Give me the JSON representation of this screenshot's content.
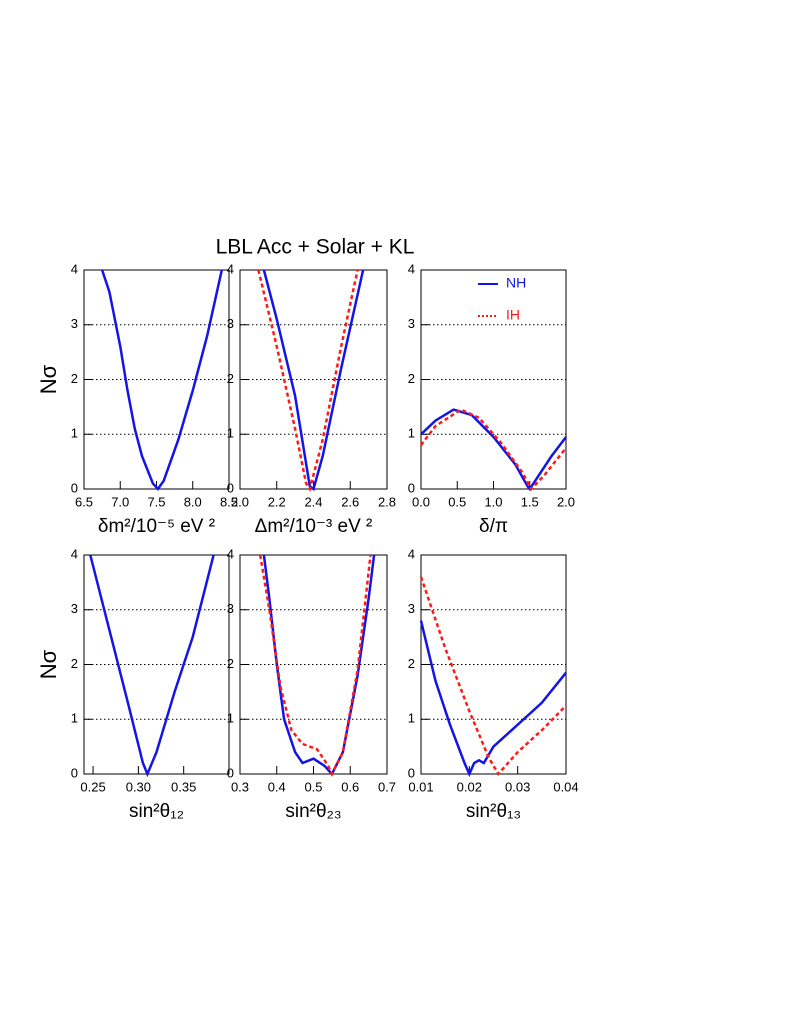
{
  "title": "LBL Acc + Solar + KL",
  "chart_data": [
    {
      "type": "line",
      "xlabel": "δm²/10⁻⁵ eV ²",
      "ylabel": "Nσ",
      "xlim": [
        6.5,
        8.5
      ],
      "xticks": [
        6.5,
        {
          "value": 7,
          "label": "7.0"
        },
        7.5,
        {
          "value": 8,
          "label": "8.0"
        },
        8.5
      ],
      "ylim": [
        0,
        4
      ],
      "yticks": [
        0,
        1,
        2,
        3,
        4
      ],
      "grid": true,
      "series": [
        {
          "color": "#1414e6",
          "linestyle": "solid",
          "x": [
            6.75,
            6.85,
            7.0,
            7.1,
            7.2,
            7.3,
            7.45,
            7.52,
            7.6,
            7.8,
            8.0,
            8.2,
            8.4
          ],
          "values": [
            4,
            3.6,
            2.6,
            1.8,
            1.1,
            0.6,
            0.1,
            0,
            0.15,
            0.9,
            1.8,
            2.8,
            4
          ]
        }
      ]
    },
    {
      "type": "line",
      "xlabel": "Δm²/10⁻³ eV ²",
      "xlim": [
        2.0,
        2.8
      ],
      "xticks": [
        {
          "value": 2,
          "label": "2.0"
        },
        2.2,
        2.4,
        2.6,
        2.8
      ],
      "ylim": [
        0,
        4
      ],
      "yticks": [
        0,
        1,
        2,
        3,
        4
      ],
      "grid": true,
      "series": [
        {
          "color": "#1414e6",
          "linestyle": "solid",
          "x": [
            2.13,
            2.2,
            2.3,
            2.38,
            2.4,
            2.45,
            2.55,
            2.67
          ],
          "values": [
            4,
            3.1,
            1.7,
            0.05,
            0,
            0.6,
            2.2,
            4
          ]
        },
        {
          "color": "#ff1a1a",
          "linestyle": "dotted",
          "x": [
            2.1,
            2.2,
            2.3,
            2.36,
            2.38,
            2.45,
            2.55,
            2.64
          ],
          "values": [
            4,
            2.6,
            1.1,
            0.1,
            0,
            0.9,
            2.6,
            4
          ]
        }
      ]
    },
    {
      "type": "line",
      "xlabel": "δ/π",
      "legend": "upper right",
      "xlim": [
        0,
        2
      ],
      "xticks": [
        {
          "value": 0,
          "label": "0.0"
        },
        0.5,
        {
          "value": 1,
          "label": "1.0"
        },
        1.5,
        {
          "value": 2,
          "label": "2.0"
        }
      ],
      "ylim": [
        0,
        4
      ],
      "yticks": [
        0,
        1,
        2,
        3,
        4
      ],
      "grid": true,
      "series": [
        {
          "name": "NH",
          "color": "#1414e6",
          "linestyle": "solid",
          "x": [
            0,
            0.2,
            0.45,
            0.7,
            1.0,
            1.3,
            1.47,
            1.5,
            1.6,
            1.8,
            2.0
          ],
          "values": [
            1,
            1.25,
            1.45,
            1.35,
            0.95,
            0.45,
            0.05,
            0,
            0.2,
            0.6,
            0.95
          ]
        },
        {
          "name": "IH",
          "color": "#ff1a1a",
          "linestyle": "dotted",
          "x": [
            0,
            0.2,
            0.55,
            0.8,
            1.1,
            1.4,
            1.52,
            1.7,
            2.0
          ],
          "values": [
            0.8,
            1.15,
            1.45,
            1.3,
            0.85,
            0.3,
            0,
            0.25,
            0.75
          ]
        }
      ]
    },
    {
      "type": "line",
      "xlabel": "sin²θ₁₂",
      "ylabel": "Nσ",
      "xlim": [
        0.24,
        0.4
      ],
      "xticks": [
        0.25,
        {
          "value": 0.3,
          "label": "0.30"
        },
        0.35
      ],
      "ylim": [
        0,
        4
      ],
      "yticks": [
        0,
        1,
        2,
        3,
        4
      ],
      "grid": true,
      "series": [
        {
          "color": "#1414e6",
          "linestyle": "solid",
          "x": [
            0.247,
            0.27,
            0.29,
            0.305,
            0.31,
            0.32,
            0.34,
            0.36,
            0.383
          ],
          "values": [
            4,
            2.5,
            1.2,
            0.2,
            0,
            0.4,
            1.5,
            2.5,
            4
          ]
        }
      ]
    },
    {
      "type": "line",
      "xlabel": "sin²θ₂₃",
      "xlim": [
        0.3,
        0.7
      ],
      "xticks": [
        0.3,
        0.4,
        0.5,
        0.6,
        0.7
      ],
      "ylim": [
        0,
        4
      ],
      "yticks": [
        0,
        1,
        2,
        3,
        4
      ],
      "grid": true,
      "series": [
        {
          "color": "#1414e6",
          "linestyle": "solid",
          "x": [
            0.365,
            0.38,
            0.4,
            0.42,
            0.45,
            0.47,
            0.5,
            0.53,
            0.55,
            0.58,
            0.62,
            0.65,
            0.665
          ],
          "values": [
            4,
            3.2,
            2.0,
            1.0,
            0.4,
            0.2,
            0.28,
            0.15,
            0,
            0.4,
            1.8,
            3.2,
            4
          ]
        },
        {
          "color": "#ff1a1a",
          "linestyle": "dotted",
          "x": [
            0.355,
            0.38,
            0.41,
            0.44,
            0.47,
            0.51,
            0.54,
            0.55,
            0.58,
            0.62,
            0.655
          ],
          "values": [
            4,
            3.0,
            1.6,
            0.8,
            0.55,
            0.45,
            0.15,
            0,
            0.4,
            1.9,
            4
          ]
        }
      ]
    },
    {
      "type": "line",
      "xlabel": "sin²θ₁₃",
      "xlim": [
        0.01,
        0.04
      ],
      "xticks": [
        0.01,
        0.02,
        0.03,
        0.04
      ],
      "ylim": [
        0,
        4
      ],
      "yticks": [
        0,
        1,
        2,
        3,
        4
      ],
      "grid": true,
      "series": [
        {
          "color": "#1414e6",
          "linestyle": "solid",
          "x": [
            0.01,
            0.013,
            0.016,
            0.019,
            0.02,
            0.021,
            0.022,
            0.023,
            0.025,
            0.03,
            0.035,
            0.04
          ],
          "values": [
            2.8,
            1.7,
            0.9,
            0.2,
            0,
            0.2,
            0.25,
            0.2,
            0.5,
            0.9,
            1.3,
            1.85
          ]
        },
        {
          "color": "#ff1a1a",
          "linestyle": "dotted",
          "x": [
            0.01,
            0.015,
            0.02,
            0.024,
            0.026,
            0.03,
            0.035,
            0.04
          ],
          "values": [
            3.6,
            2.3,
            1.15,
            0.3,
            0,
            0.4,
            0.8,
            1.25
          ]
        }
      ]
    }
  ]
}
